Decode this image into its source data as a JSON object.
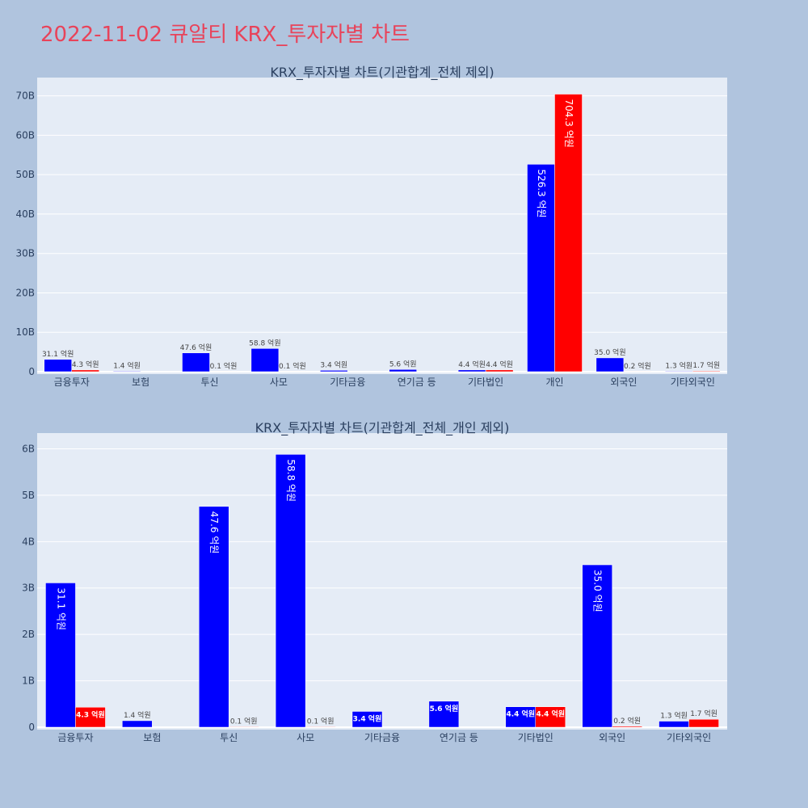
{
  "page": {
    "title": "2022-11-02 큐알티 KRX_투자자별 차트"
  },
  "colors": {
    "buy": "#0000ff",
    "sell": "#ff0000",
    "plot_bg": "#e5ecf6",
    "page_bg": "#b0c4de",
    "title": "#e8435a"
  },
  "chart_data": [
    {
      "type": "bar",
      "title": "KRX_투자자별 차트(기관합계_전체 제외)",
      "categories": [
        "금융투자",
        "보험",
        "투신",
        "사모",
        "기타금융",
        "연기금 등",
        "기타법인",
        "개인",
        "외국인",
        "기타외국인"
      ],
      "series": [
        {
          "color": "#0000ff",
          "values": [
            3110000000,
            140000000,
            4760000000,
            5880000000,
            340000000,
            560000000,
            440000000,
            52630000000,
            3500000000,
            130000000
          ],
          "labels": [
            "31.1 억원",
            "1.4 억원",
            "47.6 억원",
            "58.8 억원",
            "3.4 억원",
            "5.6 억원",
            "4.4 억원",
            "526.3 억원",
            "35.0 억원",
            "1.3 억원"
          ]
        },
        {
          "color": "#ff0000",
          "values": [
            430000000,
            0,
            10000000,
            10000000,
            0,
            0,
            440000000,
            70430000000,
            20000000,
            170000000
          ],
          "labels": [
            "4.3 억원",
            "",
            "0.1 억원",
            "0.1 억원",
            "",
            "",
            "4.4 억원",
            "704.3 억원",
            "0.2 억원",
            "1.7 억원"
          ]
        }
      ],
      "yticks": [
        0,
        10000000000,
        20000000000,
        30000000000,
        40000000000,
        50000000000,
        60000000000,
        70000000000
      ],
      "ytick_labels": [
        "0",
        "10B",
        "20B",
        "30B",
        "40B",
        "50B",
        "60B",
        "70B"
      ],
      "ylim": [
        0,
        73000000000
      ],
      "grid": true,
      "legend": "none"
    },
    {
      "type": "bar",
      "title": "KRX_투자자별 차트(기관합계_전체_개인 제외)",
      "categories": [
        "금융투자",
        "보험",
        "투신",
        "사모",
        "기타금융",
        "연기금 등",
        "기타법인",
        "외국인",
        "기타외국인"
      ],
      "series": [
        {
          "color": "#0000ff",
          "values": [
            3110000000,
            140000000,
            4760000000,
            5880000000,
            340000000,
            560000000,
            440000000,
            3500000000,
            130000000
          ],
          "labels": [
            "31.1 억원",
            "1.4 억원",
            "47.6 억원",
            "58.8 억원",
            "3.4 억원",
            "5.6 억원",
            "4.4 억원",
            "35.0 억원",
            "1.3 억원"
          ]
        },
        {
          "color": "#ff0000",
          "values": [
            430000000,
            0,
            10000000,
            10000000,
            0,
            0,
            440000000,
            20000000,
            170000000
          ],
          "labels": [
            "4.3 억원",
            "",
            "0.1 억원",
            "0.1 억원",
            "",
            "",
            "4.4 억원",
            "0.2 억원",
            "1.7 억원"
          ]
        }
      ],
      "yticks": [
        0,
        1000000000,
        2000000000,
        3000000000,
        4000000000,
        5000000000,
        6000000000
      ],
      "ytick_labels": [
        "0",
        "1B",
        "2B",
        "3B",
        "4B",
        "5B",
        "6B"
      ],
      "ylim": [
        0,
        6200000000
      ],
      "grid": true,
      "legend": "none"
    }
  ]
}
